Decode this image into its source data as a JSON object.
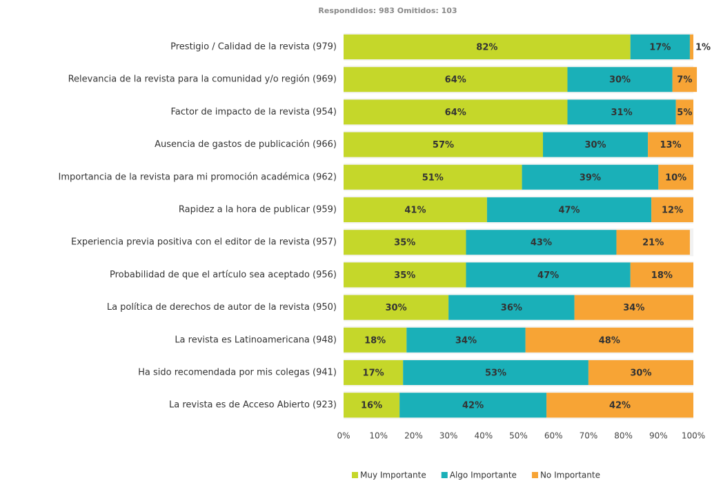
{
  "chart_data": {
    "type": "stacked-bar-horizontal",
    "subtitle": "Respondidos: 983   Omitidos: 103",
    "categories": [
      "Prestigio / Calidad de la revista (979)",
      "Relevancia de la revista para la comunidad y/o región (969)",
      "Factor de impacto de la revista (954)",
      "Ausencia de gastos de publicación (966)",
      "Importancia de la revista para mi promoción académica (962)",
      "Rapidez a la hora de publicar (959)",
      "Experiencia previa positiva con el editor de la revista (957)",
      "Probabilidad de que el artículo sea aceptado (956)",
      "La política de derechos de autor de la revista (950)",
      "La revista es Latinoamericana (948)",
      "Ha sido recomendada por mis colegas (941)",
      "La revista es de Acceso Abierto (923)"
    ],
    "series": [
      {
        "name": "Muy Importante",
        "color": "#c5d72a",
        "values": [
          82,
          64,
          64,
          57,
          51,
          41,
          35,
          35,
          30,
          18,
          17,
          16
        ],
        "value_labels": [
          "82%",
          "64%",
          "64%",
          "57%",
          "51%",
          "41%",
          "35%",
          "35%",
          "30%",
          "18%",
          "17%",
          "16%"
        ]
      },
      {
        "name": "Algo Importante",
        "color": "#1ab0b8",
        "values": [
          17,
          30,
          31,
          30,
          39,
          47,
          43,
          47,
          36,
          34,
          53,
          42
        ],
        "value_labels": [
          "17%",
          "30%",
          "31%",
          "30%",
          "39%",
          "47%",
          "43%",
          "47%",
          "36%",
          "34%",
          "53%",
          "42%"
        ]
      },
      {
        "name": "No Importante",
        "color": "#f7a435",
        "values": [
          1,
          7,
          5,
          13,
          10,
          12,
          21,
          18,
          34,
          48,
          30,
          42
        ],
        "value_labels": [
          "1%",
          "7%",
          "5%",
          "13%",
          "10%",
          "12%",
          "21%",
          "18%",
          "34%",
          "48%",
          "30%",
          "42%"
        ]
      }
    ],
    "xlim": [
      0,
      100
    ],
    "xticks": [
      {
        "value": 0,
        "label": "0%"
      },
      {
        "value": 10,
        "label": "10%"
      },
      {
        "value": 20,
        "label": "20%"
      },
      {
        "value": 30,
        "label": "30%"
      },
      {
        "value": 40,
        "label": "40%"
      },
      {
        "value": 50,
        "label": "50%"
      },
      {
        "value": 60,
        "label": "60%"
      },
      {
        "value": 70,
        "label": "70%"
      },
      {
        "value": 80,
        "label": "80%"
      },
      {
        "value": 90,
        "label": "90%"
      },
      {
        "value": 100,
        "label": "100%"
      }
    ],
    "legend": "bottom"
  }
}
